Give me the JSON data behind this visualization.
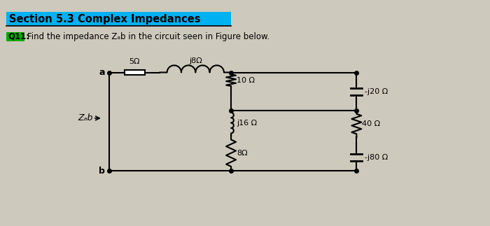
{
  "bg_color": "#cdc9bc",
  "title_text": "Section 5.3 Complex Impedances",
  "title_bg": "#00b0f0",
  "q_text": "Q11:",
  "q_bg": "#00aa00",
  "question_text": "Find the impedance Zₐb in the circuit seen in Figure below.",
  "lbl_5": "5Ω",
  "lbl_j8": "j8Ω",
  "lbl_10": "10 Ω",
  "lbl_j16": "j16 Ω",
  "lbl_8": "8Ω",
  "lbl_nj20": "-j20 Ω",
  "lbl_40": "40 Ω",
  "lbl_nj80": "-j80 Ω",
  "lbl_Zab": "Zₐb",
  "node_a": "a",
  "node_b": "b",
  "line_color": "#000000",
  "line_width": 1.5
}
